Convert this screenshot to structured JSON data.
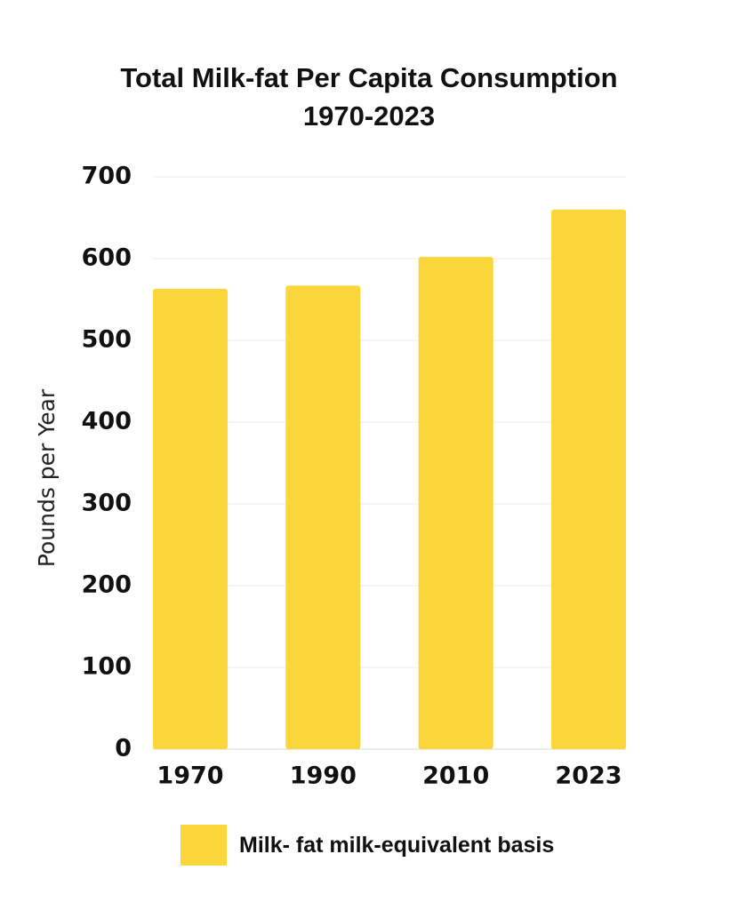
{
  "chart_data": {
    "type": "bar",
    "title": "Total Milk-fat Per Capita Consumption",
    "subtitle": "1970-2023",
    "xlabel": "",
    "ylabel": "Pounds per Year",
    "categories": [
      "1970",
      "1990",
      "2010",
      "2023"
    ],
    "series": [
      {
        "name": "Milk- fat milk-equivalent basis",
        "values": [
          563,
          567,
          602,
          660
        ]
      }
    ],
    "ylim": [
      0,
      700
    ],
    "yticks": [
      0,
      100,
      200,
      300,
      400,
      500,
      600,
      700
    ],
    "grid": true,
    "legend": "bottom",
    "colors": {
      "bar": "#FAD63A",
      "grid": "#ECECEC",
      "axis": "#D9D9D9"
    }
  }
}
